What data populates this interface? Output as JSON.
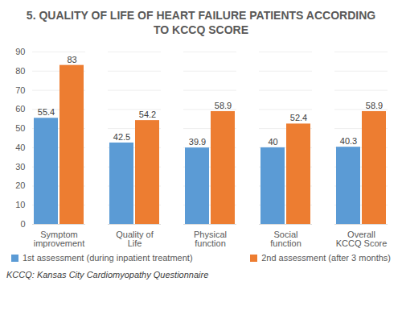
{
  "chart_data": {
    "type": "bar",
    "title": "5. QUALITY OF LIFE OF HEART FAILURE PATIENTS ACCORDING TO KCCQ SCORE",
    "caption": "KCCQ: Kansas City Cardiomyopathy Questionnaire",
    "categories": [
      "Symptom improvement",
      "Quality of Life",
      "Physical function",
      "Social function",
      "Overall KCCQ Score"
    ],
    "series": [
      {
        "name": "1st assessment (during inpatient treatment)",
        "color": "#5b9bd5",
        "values": [
          55.4,
          42.5,
          39.9,
          40,
          40.3
        ]
      },
      {
        "name": "2nd assessment (after 3 months)",
        "color": "#ed7d31",
        "values": [
          83,
          54.2,
          58.9,
          52.4,
          58.9
        ]
      }
    ],
    "ylim": [
      0,
      90
    ],
    "yticks": [
      0,
      10,
      20,
      30,
      40,
      50,
      60,
      70,
      80,
      90
    ],
    "grid": true,
    "data_labels": true,
    "legend": "bottom"
  }
}
